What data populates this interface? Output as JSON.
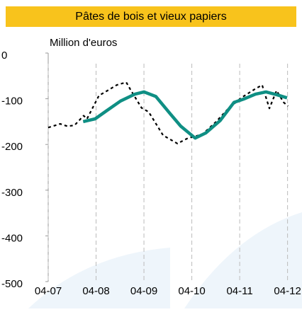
{
  "chart_data": {
    "type": "line",
    "title": "Pâtes de bois et vieux papiers",
    "y_label": "Million d'euros",
    "xlim": [
      2007.25,
      2012.3
    ],
    "xticks": [
      {
        "value": 2007.25,
        "label": "04-07"
      },
      {
        "value": 2008.25,
        "label": "04-08"
      },
      {
        "value": 2009.25,
        "label": "04-09"
      },
      {
        "value": 2010.25,
        "label": "04-10"
      },
      {
        "value": 2011.25,
        "label": "04-11"
      },
      {
        "value": 2012.25,
        "label": "04-12"
      }
    ],
    "ylim": [
      -500,
      0
    ],
    "yticks": [
      0,
      -100,
      -200,
      -300,
      -400,
      -500
    ],
    "grid": true,
    "series": [
      {
        "color": "#000000",
        "dash": true,
        "x": [
          2007.25,
          2007.5,
          2007.65,
          2007.8,
          2007.99,
          2008.06,
          2008.31,
          2008.49,
          2008.68,
          2008.88,
          2008.98,
          2009.2,
          2009.35,
          2009.65,
          2009.95,
          2010.17,
          2010.47,
          2010.76,
          2010.99,
          2011.28,
          2011.58,
          2011.72,
          2011.87,
          2012.02,
          2012.17,
          2012.26
        ],
        "values": [
          -163,
          -155,
          -160,
          -158,
          -137,
          -144,
          -93,
          -82,
          -70,
          -64,
          -82,
          -120,
          -129,
          -180,
          -198,
          -186,
          -178,
          -150,
          -124,
          -98,
          -78,
          -70,
          -121,
          -82,
          -108,
          -116
        ]
      },
      {
        "color": "#0f8f84",
        "dash": false,
        "x": [
          2007.98,
          2008.23,
          2008.46,
          2008.76,
          2009.06,
          2009.25,
          2009.5,
          2009.8,
          2010.02,
          2010.32,
          2010.54,
          2010.84,
          2011.13,
          2011.35,
          2011.58,
          2011.8,
          2012.02,
          2012.24
        ],
        "values": [
          -150,
          -144,
          -127,
          -105,
          -90,
          -85,
          -95,
          -133,
          -160,
          -186,
          -175,
          -148,
          -108,
          -100,
          -90,
          -85,
          -91,
          -98
        ]
      }
    ]
  }
}
